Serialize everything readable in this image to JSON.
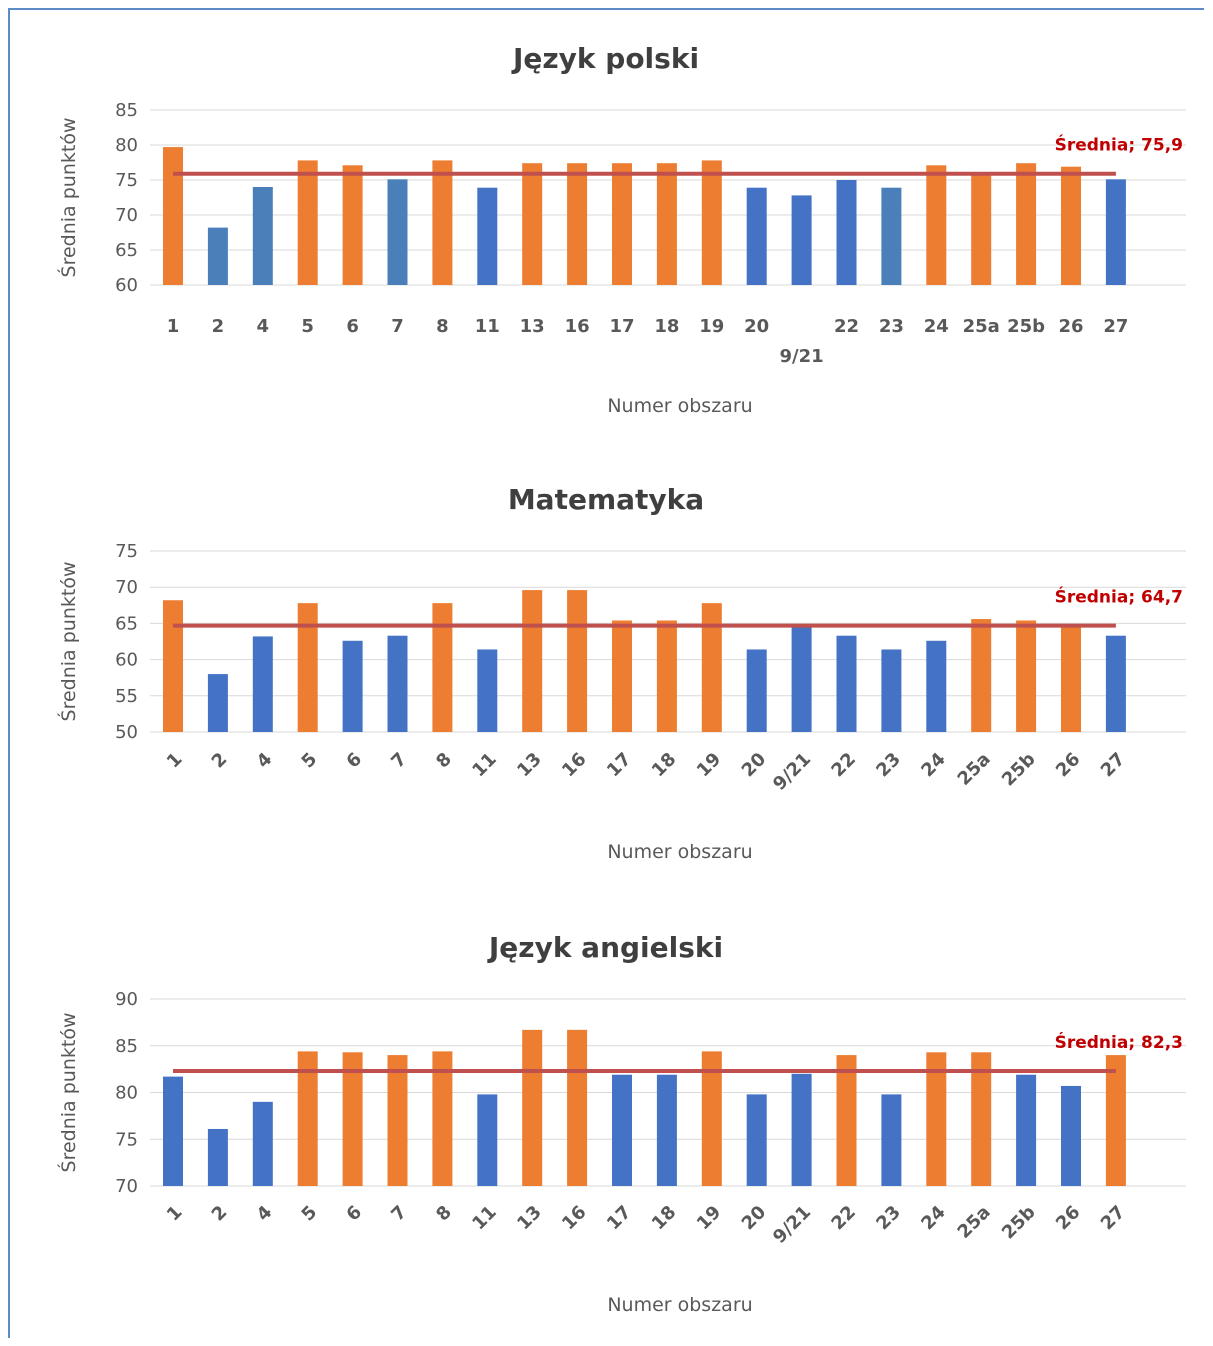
{
  "chart_data": [
    {
      "type": "bar",
      "title": "Język polski",
      "xlabel": "Numer obszaru",
      "ylabel": "Średnia punktów",
      "ylim": [
        60,
        85
      ],
      "yticks": [
        "60",
        "65",
        "70",
        "75",
        "80",
        "85"
      ],
      "categories": [
        "1",
        "2",
        "4",
        "5",
        "6",
        "7",
        "8",
        "11",
        "13",
        "16",
        "17",
        "18",
        "19",
        "20",
        "9/21",
        "22",
        "23",
        "24",
        "25a",
        "25b",
        "26",
        "27"
      ],
      "values": [
        79.7,
        68.2,
        74.0,
        77.8,
        77.1,
        75.1,
        77.8,
        73.9,
        77.4,
        77.4,
        77.4,
        77.4,
        77.8,
        73.9,
        72.8,
        75.0,
        73.9,
        77.1,
        76.1,
        77.4,
        76.9,
        75.1
      ],
      "bar_colors": [
        "orange",
        "steel",
        "steel",
        "orange",
        "orange",
        "steel",
        "orange",
        "blue",
        "orange",
        "orange",
        "orange",
        "orange",
        "orange",
        "blue",
        "blue",
        "blue",
        "steel",
        "orange",
        "orange",
        "orange",
        "orange",
        "blue"
      ],
      "average": {
        "label": "Średnia; 75,9",
        "value": 75.9
      },
      "label_style": "staggered"
    },
    {
      "type": "bar",
      "title": "Matematyka",
      "xlabel": "Numer obszaru",
      "ylabel": "Średnia punktów",
      "ylim": [
        50,
        75
      ],
      "yticks": [
        "50",
        "55",
        "60",
        "65",
        "70",
        "75"
      ],
      "categories": [
        "1",
        "2",
        "4",
        "5",
        "6",
        "7",
        "8",
        "11",
        "13",
        "16",
        "17",
        "18",
        "19",
        "20",
        "9/21",
        "22",
        "23",
        "24",
        "25a",
        "25b",
        "26",
        "27"
      ],
      "values": [
        68.2,
        58.0,
        63.2,
        67.8,
        62.6,
        63.3,
        67.8,
        61.4,
        69.6,
        69.6,
        65.4,
        65.4,
        67.8,
        61.4,
        64.5,
        63.3,
        61.4,
        62.6,
        65.6,
        65.4,
        64.6,
        63.3
      ],
      "bar_colors": [
        "orange",
        "blue",
        "blue",
        "orange",
        "blue",
        "blue",
        "orange",
        "blue",
        "orange",
        "orange",
        "orange",
        "orange",
        "orange",
        "blue",
        "blue",
        "blue",
        "blue",
        "blue",
        "orange",
        "orange",
        "orange",
        "blue"
      ],
      "average": {
        "label": "Średnia; 64,7",
        "value": 64.7
      },
      "label_style": "rotated"
    },
    {
      "type": "bar",
      "title": "Język angielski",
      "xlabel": "Numer obszaru",
      "ylabel": "Średnia punktów",
      "ylim": [
        70,
        90
      ],
      "yticks": [
        "70",
        "75",
        "80",
        "85",
        "90"
      ],
      "categories": [
        "1",
        "2",
        "4",
        "5",
        "6",
        "7",
        "8",
        "11",
        "13",
        "16",
        "17",
        "18",
        "19",
        "20",
        "9/21",
        "22",
        "23",
        "24",
        "25a",
        "25b",
        "26",
        "27"
      ],
      "values": [
        81.7,
        76.1,
        79.0,
        84.4,
        84.3,
        84.0,
        84.4,
        79.8,
        86.7,
        86.7,
        81.9,
        81.9,
        84.4,
        79.8,
        82.0,
        84.0,
        79.8,
        84.3,
        84.3,
        81.9,
        80.7,
        84.0
      ],
      "bar_colors": [
        "blue",
        "blue",
        "blue",
        "orange",
        "orange",
        "orange",
        "orange",
        "blue",
        "orange",
        "orange",
        "blue",
        "blue",
        "orange",
        "blue",
        "blue",
        "orange",
        "blue",
        "orange",
        "orange",
        "blue",
        "blue",
        "orange"
      ],
      "average": {
        "label": "Średnia; 82,3",
        "value": 82.3
      },
      "label_style": "rotated"
    }
  ],
  "colors": {
    "orange": "#ed7d31",
    "blue": "#4472c4",
    "steel": "#4a7fb9",
    "average_line": "#c0504d",
    "average_label": "#c00000",
    "gridline": "#d9d9d9",
    "frame": "#5b8cc7"
  }
}
